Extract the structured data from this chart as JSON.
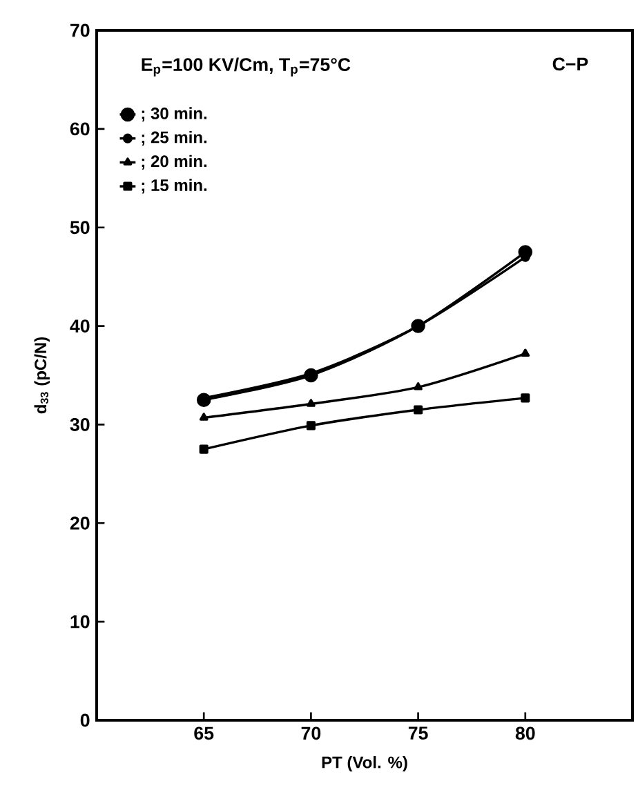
{
  "chart_data": {
    "type": "line",
    "legend_title": "E$_{p}$=100 KV/Cm, T$_{p}$=75°C",
    "annotations": [
      "C−P"
    ],
    "xlabel": "PT (Vol. %)",
    "ylabel": "d$_{33}$ (pC/N)",
    "x": [
      65,
      70,
      75,
      80
    ],
    "series": [
      {
        "name": "; 30 min.",
        "color": "#000000",
        "marker": "circle",
        "values": [
          32.5,
          35.0,
          40.0,
          47.5
        ]
      },
      {
        "name": "; 25 min.",
        "color": "#000000",
        "marker": "circle",
        "values": [
          32.7,
          35.2,
          40.0,
          47.0
        ]
      },
      {
        "name": "; 20 min.",
        "color": "#000000",
        "marker": "triangle",
        "values": [
          30.7,
          32.1,
          33.8,
          37.2
        ]
      },
      {
        "name": "; 15 min.",
        "color": "#000000",
        "marker": "square",
        "values": [
          27.5,
          29.9,
          31.5,
          32.7
        ]
      }
    ],
    "xlim": [
      60,
      85
    ],
    "ylim": [
      0,
      70
    ],
    "xticks": [
      65,
      70,
      75,
      80
    ],
    "yticks": [
      0,
      10,
      20,
      30,
      40,
      50,
      60,
      70
    ],
    "legend": "top left",
    "grid": false
  }
}
